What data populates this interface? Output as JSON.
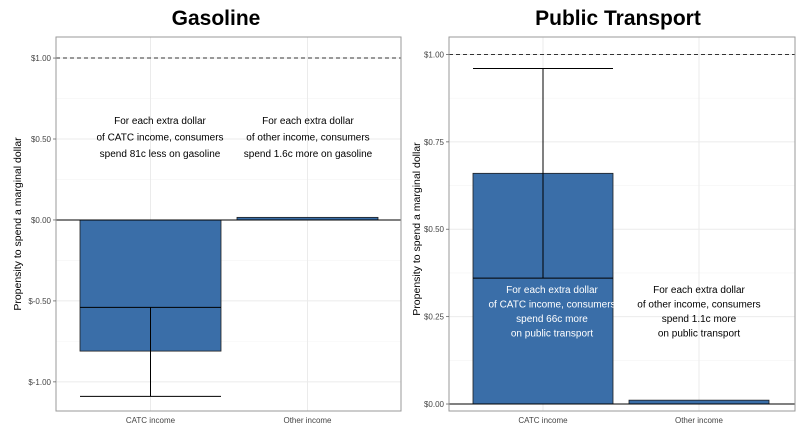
{
  "colors": {
    "bar": "#3a6ea8",
    "panel_border": "#9a9a9a",
    "grid": "#ebebeb",
    "reference_line": "#333333"
  },
  "chart_data": [
    {
      "type": "bar",
      "title": "Gasoline",
      "ylabel": "Propensity to spend a marginal dollar",
      "categories": [
        "CATC income",
        "Other income"
      ],
      "values": [
        -0.81,
        0.016
      ],
      "error_low": [
        -1.09,
        null
      ],
      "error_high": [
        -0.54,
        null
      ],
      "yticks": [
        -1.0,
        -0.5,
        0.0,
        0.5,
        1.0
      ],
      "ytick_labels": [
        "$-1.00",
        "$-0.50",
        "$0.00",
        "$0.50",
        "$1.00"
      ],
      "ylim": [
        -1.18,
        1.13
      ],
      "reference_line": 1.0,
      "grid": true,
      "annotations": [
        {
          "lines": [
            "For each extra dollar",
            "of CATC income, consumers",
            "spend 81c less on gasoline"
          ]
        },
        {
          "lines": [
            "For each extra dollar",
            "of other income, consumers",
            "spend 1.6c more on gasoline"
          ]
        }
      ]
    },
    {
      "type": "bar",
      "title": "Public Transport",
      "ylabel": "Propensity to spend a marginal dollar",
      "categories": [
        "CATC income",
        "Other income"
      ],
      "values": [
        0.66,
        0.011
      ],
      "error_low": [
        0.36,
        null
      ],
      "error_high": [
        0.96,
        null
      ],
      "yticks": [
        0.0,
        0.25,
        0.5,
        0.75,
        1.0
      ],
      "ytick_labels": [
        "$0.00",
        "$0.25",
        "$0.50",
        "$0.75",
        "$1.00"
      ],
      "ylim": [
        -0.02,
        1.05
      ],
      "reference_line": 1.0,
      "grid": true,
      "annotations": [
        {
          "lines": [
            "For each extra dollar",
            "of CATC income, consumers",
            "spend 66c more",
            "on public transport"
          ]
        },
        {
          "lines": [
            "For each extra dollar",
            "of other income, consumers",
            "spend 1.1c more",
            "on public transport"
          ]
        }
      ]
    }
  ]
}
